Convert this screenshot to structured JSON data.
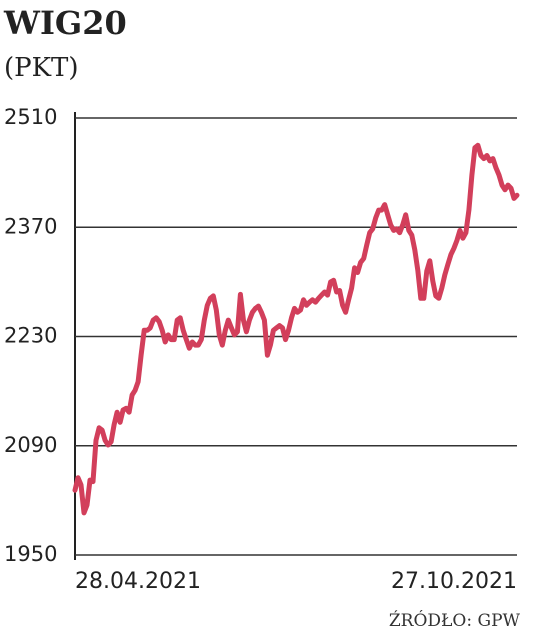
{
  "chart_data": {
    "type": "line",
    "title": "WIG20",
    "subtitle": "(PKT)",
    "source": "ŹRÓDŁO: GPW",
    "categories": [
      "28.04.2021",
      null,
      null,
      null,
      null,
      null,
      null,
      null,
      null,
      null,
      null,
      null,
      null,
      null,
      null,
      null,
      null,
      null,
      null,
      null,
      null,
      null,
      null,
      null,
      null,
      null,
      null,
      null,
      null,
      null,
      null,
      null,
      null,
      null,
      null,
      null,
      null,
      null,
      null,
      null,
      null,
      null,
      null,
      null,
      null,
      null,
      null,
      null,
      null,
      null,
      null,
      null,
      null,
      null,
      null,
      null,
      null,
      null,
      null,
      null,
      null,
      null,
      null,
      null,
      null,
      null,
      null,
      null,
      null,
      null,
      null,
      null,
      null,
      null,
      null,
      null,
      null,
      null,
      null,
      null,
      null,
      null,
      null,
      null,
      null,
      null,
      null,
      null,
      null,
      null,
      null,
      null,
      null,
      null,
      null,
      null,
      null,
      null,
      null,
      null,
      null,
      null,
      null,
      null,
      null,
      null,
      null,
      null,
      null,
      null,
      null,
      null,
      null,
      null,
      null,
      null,
      null,
      null,
      null,
      null,
      null,
      null,
      null,
      null,
      null,
      null,
      null,
      null,
      null,
      null,
      null,
      null,
      null,
      null,
      null,
      null,
      null,
      null,
      null,
      null,
      null,
      null,
      null,
      null,
      null,
      null,
      null,
      "27.10.2021"
    ],
    "values": [
      2033,
      2049,
      2040,
      2004,
      2014,
      2046,
      2044,
      2097,
      2113,
      2110,
      2097,
      2091,
      2095,
      2117,
      2133,
      2120,
      2136,
      2138,
      2133,
      2155,
      2161,
      2172,
      2206,
      2238,
      2238,
      2241,
      2251,
      2254,
      2249,
      2238,
      2223,
      2232,
      2226,
      2226,
      2251,
      2254,
      2238,
      2226,
      2215,
      2223,
      2219,
      2219,
      2226,
      2251,
      2270,
      2279,
      2282,
      2264,
      2232,
      2219,
      2238,
      2251,
      2241,
      2232,
      2236,
      2284,
      2251,
      2236,
      2251,
      2261,
      2266,
      2269,
      2261,
      2251,
      2206,
      2219,
      2238,
      2241,
      2244,
      2241,
      2226,
      2238,
      2254,
      2266,
      2261,
      2264,
      2277,
      2270,
      2274,
      2277,
      2274,
      2279,
      2283,
      2287,
      2283,
      2300,
      2302,
      2287,
      2289,
      2270,
      2261,
      2277,
      2292,
      2318,
      2312,
      2325,
      2330,
      2347,
      2363,
      2368,
      2382,
      2392,
      2392,
      2399,
      2386,
      2373,
      2366,
      2368,
      2363,
      2373,
      2386,
      2366,
      2360,
      2341,
      2315,
      2279,
      2279,
      2314,
      2327,
      2301,
      2282,
      2279,
      2292,
      2309,
      2322,
      2335,
      2343,
      2353,
      2366,
      2356,
      2363,
      2392,
      2437,
      2472,
      2475,
      2462,
      2458,
      2462,
      2455,
      2458,
      2446,
      2437,
      2424,
      2418,
      2424,
      2420,
      2407,
      2411
    ],
    "color": "#d23f5b",
    "ylim": [
      1950,
      2510
    ],
    "yticks": [
      1950,
      2090,
      2230,
      2370,
      2510
    ],
    "grid": true
  }
}
